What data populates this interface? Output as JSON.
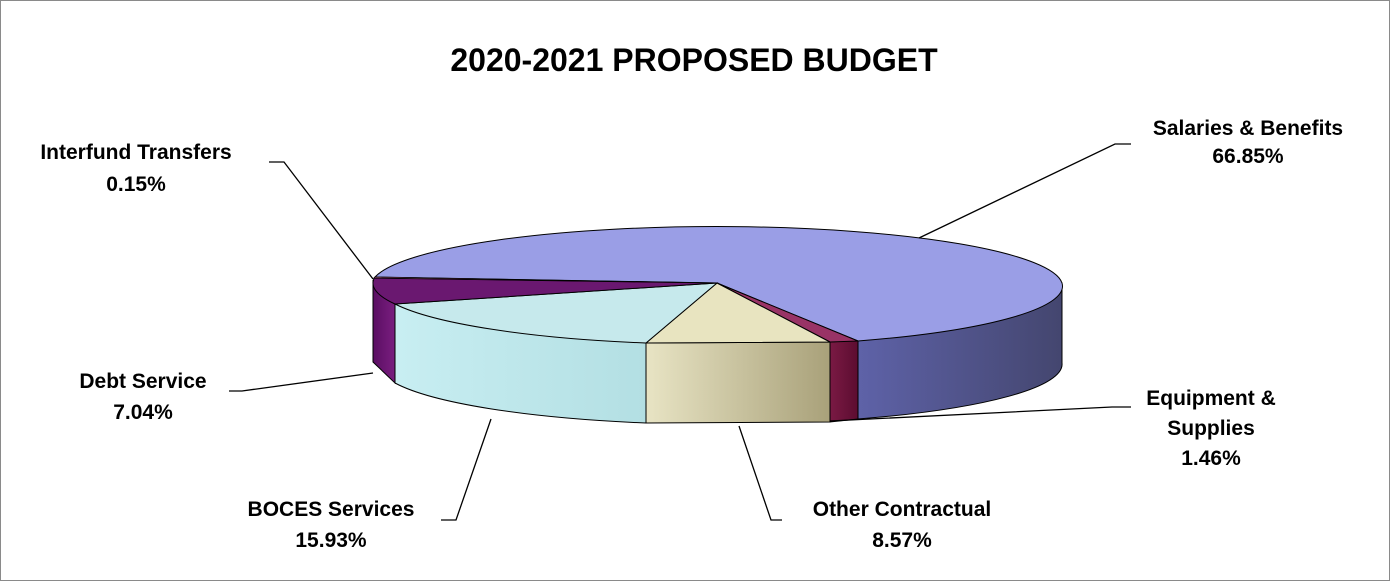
{
  "chart_data": {
    "type": "pie",
    "style": "3d",
    "title": "2020-2021 PROPOSED BUDGET",
    "slices": [
      {
        "name": "Salaries & Benefits",
        "value": 66.85,
        "value_label": "66.85%",
        "color": "#9a9ee6",
        "side_color": "#4d4f88"
      },
      {
        "name": "Equipment & Supplies",
        "value": 1.46,
        "value_label": "1.46%",
        "color": "#993366",
        "side_color": "#661133"
      },
      {
        "name": "Other Contractual",
        "value": 8.57,
        "value_label": "8.57%",
        "color": "#e8e4c0",
        "side_color": "#b8b088"
      },
      {
        "name": "BOCES Services",
        "value": 15.93,
        "value_label": "15.93%",
        "color": "#c6e9ec",
        "side_color": "#b0dce0"
      },
      {
        "name": "Debt Service",
        "value": 7.04,
        "value_label": "7.04%",
        "color": "#6a1870",
        "side_color": "#5a1060"
      },
      {
        "name": "Interfund Transfers",
        "value": 0.15,
        "value_label": "0.15%",
        "color": "#b06080",
        "side_color": "#803050"
      }
    ]
  }
}
